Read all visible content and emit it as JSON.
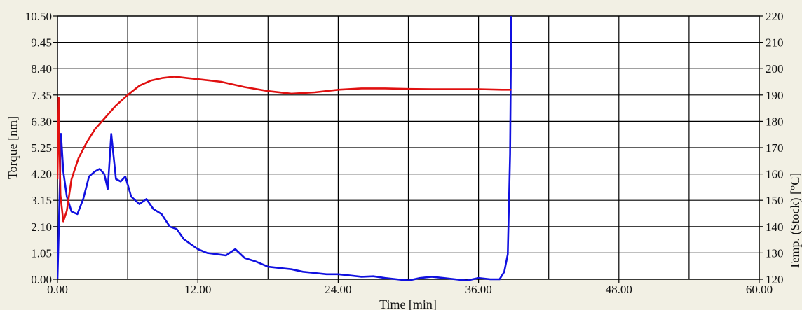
{
  "chart_data": {
    "type": "line",
    "xlabel": "Time [min]",
    "ylabel": "Torque [nm]",
    "y2label": "Temp. (Stock) [°C]",
    "xlim": [
      0,
      60
    ],
    "ylim": [
      0,
      10.5
    ],
    "y2lim": [
      120,
      220
    ],
    "x_ticks": [
      "0.00",
      "12.00",
      "24.00",
      "36.00",
      "48.00",
      "60.00"
    ],
    "y_ticks": [
      "0.00",
      "1.05",
      "2.10",
      "3.15",
      "4.20",
      "5.25",
      "6.30",
      "7.35",
      "8.40",
      "9.45",
      "10.50"
    ],
    "y2_ticks": [
      "120",
      "130",
      "140",
      "150",
      "160",
      "170",
      "180",
      "190",
      "200",
      "210",
      "220"
    ],
    "grid": true,
    "series": [
      {
        "name": "Torque",
        "axis": "left",
        "color": "#1010e0",
        "x": [
          0.0,
          0.1,
          0.3,
          0.5,
          0.8,
          1.2,
          1.7,
          2.2,
          2.7,
          3.2,
          3.6,
          4.0,
          4.3,
          4.6,
          5.0,
          5.4,
          5.8,
          6.3,
          7.0,
          7.6,
          8.2,
          8.9,
          9.6,
          10.2,
          10.8,
          11.4,
          12.0,
          12.8,
          13.6,
          14.4,
          15.2,
          16.0,
          17.0,
          18.0,
          19.0,
          20.0,
          21.0,
          22.0,
          23.0,
          24.0,
          25.0,
          26.0,
          27.0,
          28.0,
          29.0,
          30.0,
          31.0,
          32.0,
          33.0,
          34.0,
          35.0,
          36.0,
          37.0,
          37.8,
          38.2,
          38.5,
          38.7,
          38.8
        ],
        "y": [
          0.0,
          1.8,
          5.8,
          4.3,
          3.3,
          2.7,
          2.6,
          3.2,
          4.1,
          4.3,
          4.4,
          4.2,
          3.6,
          5.8,
          4.0,
          3.9,
          4.1,
          3.3,
          3.0,
          3.2,
          2.8,
          2.6,
          2.1,
          2.0,
          1.6,
          1.4,
          1.2,
          1.05,
          1.0,
          0.95,
          1.2,
          0.85,
          0.7,
          0.5,
          0.45,
          0.4,
          0.3,
          0.25,
          0.2,
          0.2,
          0.15,
          0.1,
          0.12,
          0.05,
          0.0,
          -0.05,
          0.05,
          0.1,
          0.05,
          0.0,
          -0.05,
          0.05,
          0.0,
          0.0,
          0.3,
          1.0,
          5.0,
          10.5
        ]
      },
      {
        "name": "Temp. (Stock)",
        "axis": "right",
        "color": "#e01010",
        "x": [
          0.0,
          0.1,
          0.25,
          0.5,
          0.8,
          1.2,
          1.8,
          2.5,
          3.2,
          4.0,
          5.0,
          6.0,
          7.0,
          8.0,
          9.0,
          10.0,
          11.0,
          12.0,
          13.0,
          14.0,
          16.0,
          18.0,
          20.0,
          22.0,
          24.0,
          26.0,
          28.0,
          30.0,
          32.0,
          34.0,
          36.0,
          38.0,
          38.8
        ],
        "y": [
          158,
          189,
          152,
          142,
          146,
          158,
          166,
          172,
          177,
          181,
          186,
          190,
          193.5,
          195.5,
          196.5,
          197,
          196.5,
          196,
          195.5,
          195,
          193,
          191.5,
          190.5,
          191,
          192,
          192.5,
          192.5,
          192.3,
          192.2,
          192.2,
          192.2,
          192,
          192
        ]
      }
    ]
  }
}
